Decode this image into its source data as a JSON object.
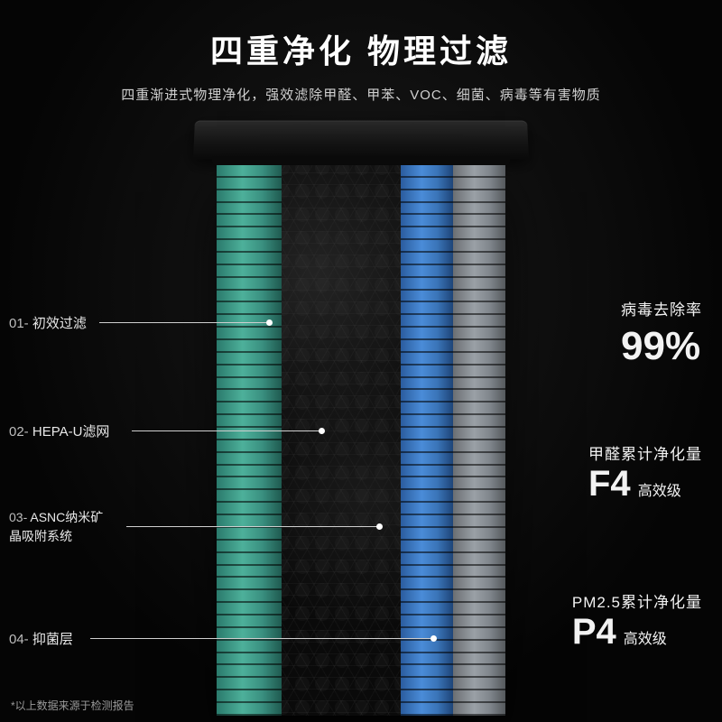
{
  "header": {
    "title": "四重净化 物理过滤",
    "subtitle": "四重渐进式物理净化，强效滤除甲醛、甲苯、VOC、细菌、病毒等有害物质"
  },
  "filters": {
    "rib_count": 44,
    "layers": [
      {
        "num": "01-",
        "label": "初效过滤"
      },
      {
        "num": "02-",
        "label": "HEPA-U滤网"
      },
      {
        "num": "03-",
        "label": "ASNC纳米矿\n晶吸附系统"
      },
      {
        "num": "04-",
        "label": "抑菌层"
      }
    ],
    "colors": {
      "green": "#4db09a",
      "dark": "#0a0a0a",
      "blue": "#4a8cd8",
      "gray": "#9aa0a6",
      "background": "#050505",
      "text": "#ffffff",
      "subtext": "#d0d0d0",
      "footnote": "#9a9a9a",
      "leader": "#cfcfcf"
    }
  },
  "stats": {
    "virus": {
      "label": "病毒去除率",
      "value": "99%"
    },
    "hcho": {
      "label": "甲醛累计净化量",
      "value": "F4",
      "suffix": "高效级"
    },
    "pm25": {
      "label": "PM2.5累计净化量",
      "value": "P4",
      "suffix": "高效级"
    }
  },
  "footnote": "*以上数据来源于检测报告"
}
